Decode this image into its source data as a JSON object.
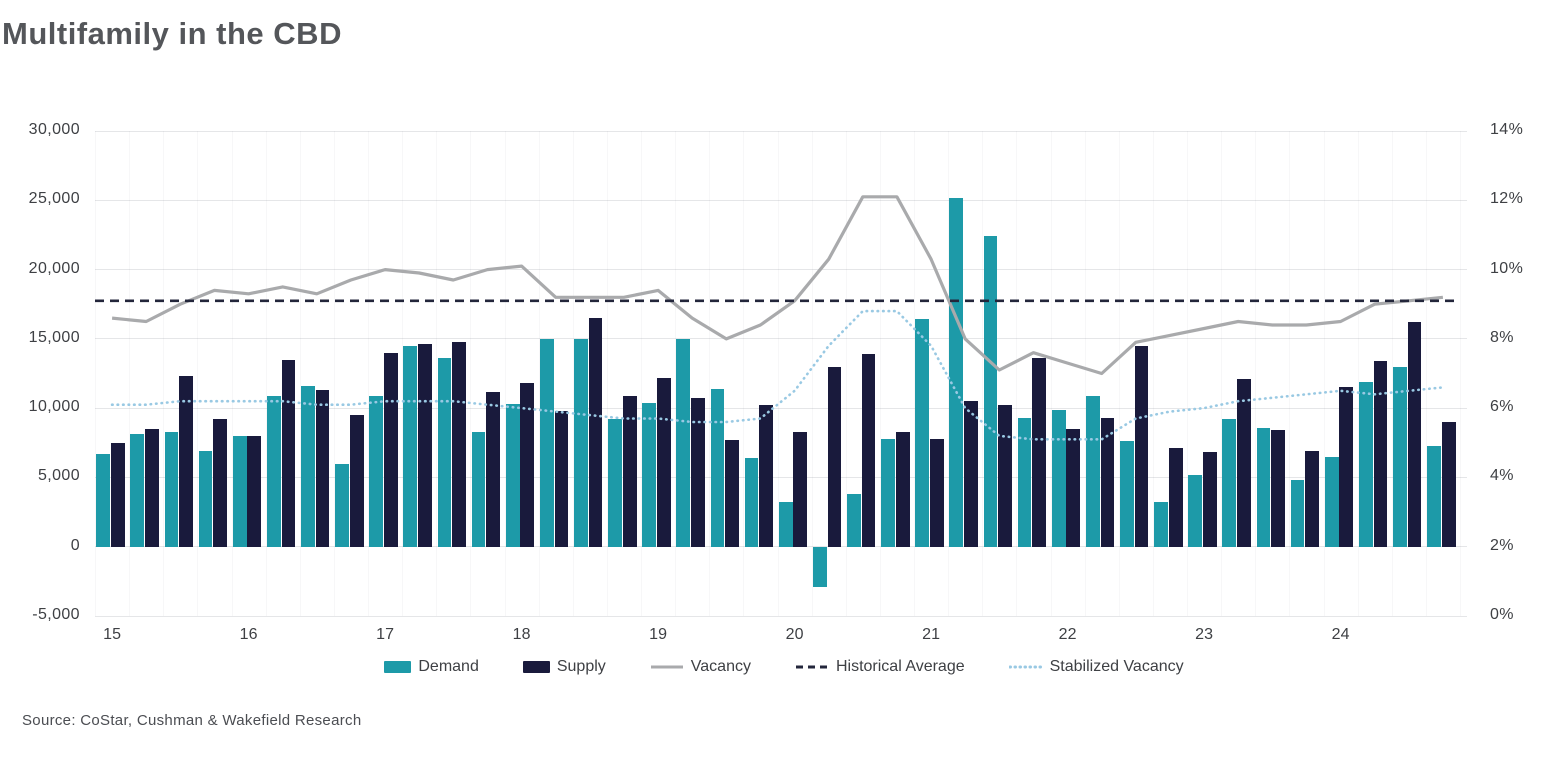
{
  "title": "Multifamily in the CBD",
  "source": "Source: CoStar, Cushman & Wakefield Research",
  "colors": {
    "demand": "#1D9AA8",
    "supply": "#191A3C",
    "vacancy": "#A9AAAC",
    "historical_average": "#23263B",
    "stabilized_vacancy": "#99C9E3",
    "gridline": "#E5E6E8",
    "axis_text": "#3E4044",
    "title_text": "#54565A"
  },
  "legend": [
    {
      "label": "Demand",
      "swatch": "bar",
      "color": "#1D9AA8"
    },
    {
      "label": "Supply",
      "swatch": "bar",
      "color": "#191A3C"
    },
    {
      "label": "Vacancy",
      "swatch": "line",
      "color": "#A9AAAC"
    },
    {
      "label": "Historical Average",
      "swatch": "dashed",
      "color": "#23263B"
    },
    {
      "label": "Stabilized Vacancy",
      "swatch": "dotted",
      "color": "#99C9E3"
    }
  ],
  "chart_data": {
    "type": "bar+line combo, dual axis, quarterly",
    "categories_years": [
      "15",
      "16",
      "17",
      "18",
      "19",
      "20",
      "21",
      "22",
      "23",
      "24"
    ],
    "quarters_per_year": 4,
    "left_axis": {
      "min": -5000,
      "max": 30000,
      "tick_values": [
        30000,
        25000,
        20000,
        15000,
        10000,
        5000,
        0,
        -5000
      ],
      "tick_labels": [
        "30,000",
        "25,000",
        "20,000",
        "15,000",
        "10,000",
        "5,000",
        "0",
        "-5,000"
      ]
    },
    "right_axis": {
      "min": 0,
      "max": 14,
      "tick_values": [
        14,
        12,
        10,
        8,
        6,
        4,
        2,
        0
      ],
      "tick_labels": [
        "14%",
        "12%",
        "10%",
        "8%",
        "6%",
        "4%",
        "2%",
        "0%"
      ]
    },
    "grid": "horizontal major lines on, faint quarterly vertical lines",
    "legend_position": "bottom center",
    "series": [
      {
        "name": "Demand",
        "type": "bar",
        "axis": "left",
        "values": [
          6700,
          8100,
          8300,
          6900,
          8000,
          10900,
          11600,
          6000,
          10900,
          14500,
          13600,
          8300,
          10300,
          15000,
          15000,
          9200,
          10400,
          15000,
          11400,
          6400,
          3200,
          -2900,
          3800,
          7800,
          16400,
          25200,
          22400,
          9300,
          9900,
          10900,
          7600,
          3200,
          5200,
          9200,
          8600,
          4800,
          6500,
          11900,
          13000,
          7300
        ]
      },
      {
        "name": "Supply",
        "type": "bar",
        "axis": "left",
        "values": [
          7500,
          8500,
          12300,
          9200,
          8000,
          13500,
          11300,
          9500,
          14000,
          14600,
          14800,
          11200,
          11800,
          9800,
          16500,
          10900,
          12200,
          10700,
          7700,
          10200,
          8300,
          13000,
          13900,
          8300,
          7800,
          10500,
          10200,
          13600,
          8500,
          9300,
          14500,
          7100,
          6800,
          12100,
          8400,
          6900,
          11500,
          13400,
          16200,
          9000
        ]
      },
      {
        "name": "Vacancy",
        "type": "line",
        "axis": "right",
        "values": [
          8.6,
          8.5,
          9.0,
          9.4,
          9.3,
          9.5,
          9.3,
          9.7,
          10.0,
          9.9,
          9.7,
          10.0,
          10.1,
          9.2,
          9.2,
          9.2,
          9.4,
          8.6,
          8.0,
          8.4,
          9.1,
          10.3,
          12.1,
          12.1,
          10.3,
          8.0,
          7.1,
          7.6,
          7.3,
          7.0,
          7.9,
          8.1,
          8.3,
          8.5,
          8.4,
          8.4,
          8.5,
          9.0,
          9.1,
          9.2
        ]
      },
      {
        "name": "Historical Average",
        "type": "dashed-line",
        "axis": "right",
        "value": 9.1
      },
      {
        "name": "Stabilized Vacancy",
        "type": "dotted-line",
        "axis": "right",
        "values": [
          6.1,
          6.1,
          6.2,
          6.2,
          6.2,
          6.2,
          6.1,
          6.1,
          6.2,
          6.2,
          6.2,
          6.1,
          6.0,
          5.9,
          5.8,
          5.7,
          5.7,
          5.6,
          5.6,
          5.7,
          6.5,
          7.8,
          8.8,
          8.8,
          7.8,
          6.0,
          5.2,
          5.1,
          5.1,
          5.1,
          5.7,
          5.9,
          6.0,
          6.2,
          6.3,
          6.4,
          6.5,
          6.4,
          6.5,
          6.6
        ]
      }
    ]
  }
}
